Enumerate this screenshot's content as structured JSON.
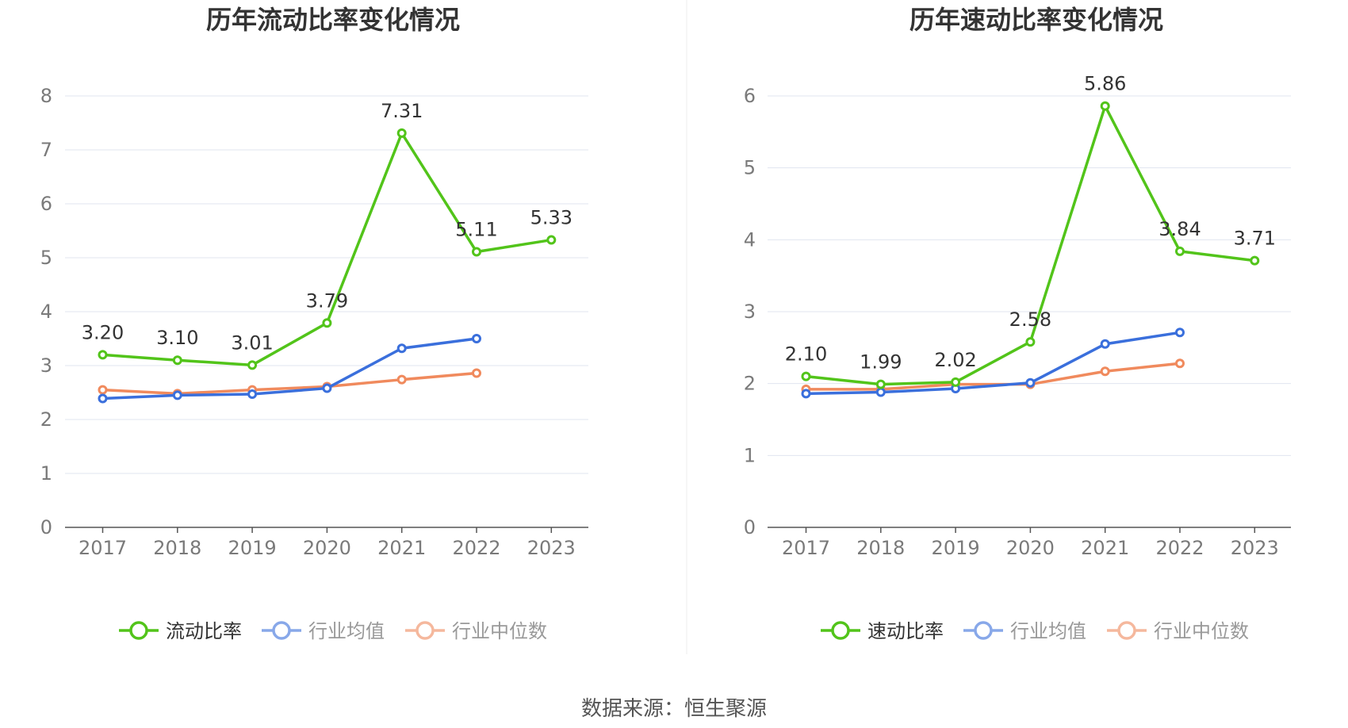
{
  "source_label": "数据来源：恒生聚源",
  "chart_data": [
    {
      "type": "line",
      "title": "历年流动比率变化情况",
      "categories": [
        "2017",
        "2018",
        "2019",
        "2020",
        "2021",
        "2022",
        "2023"
      ],
      "ylim": [
        0,
        8
      ],
      "yticks": [
        "0",
        "1",
        "2",
        "3",
        "4",
        "5",
        "6",
        "7",
        "8"
      ],
      "grid": true,
      "legend_position": "bottom-center",
      "series": [
        {
          "name": "流动比率",
          "color": "#52c41a",
          "values": [
            3.2,
            3.1,
            3.01,
            3.79,
            7.31,
            5.11,
            5.33
          ],
          "labels": [
            "3.20",
            "3.10",
            "3.01",
            "3.79",
            "7.31",
            "5.11",
            "5.33"
          ]
        },
        {
          "name": "行业均值",
          "color": "#3a6fdc",
          "values": [
            2.39,
            2.45,
            2.47,
            2.58,
            3.32,
            3.5,
            null
          ]
        },
        {
          "name": "行业中位数",
          "color": "#f08a5d",
          "values": [
            2.55,
            2.48,
            2.55,
            2.61,
            2.74,
            2.86,
            null
          ]
        }
      ]
    },
    {
      "type": "line",
      "title": "历年速动比率变化情况",
      "categories": [
        "2017",
        "2018",
        "2019",
        "2020",
        "2021",
        "2022",
        "2023"
      ],
      "ylim": [
        0,
        6
      ],
      "yticks": [
        "0",
        "1",
        "2",
        "3",
        "4",
        "5",
        "6"
      ],
      "grid": true,
      "legend_position": "bottom-center",
      "series": [
        {
          "name": "速动比率",
          "color": "#52c41a",
          "values": [
            2.1,
            1.99,
            2.02,
            2.58,
            5.86,
            3.84,
            3.71
          ],
          "labels": [
            "2.10",
            "1.99",
            "2.02",
            "2.58",
            "5.86",
            "3.84",
            "3.71"
          ]
        },
        {
          "name": "行业均值",
          "color": "#3a6fdc",
          "values": [
            1.86,
            1.88,
            1.93,
            2.01,
            2.55,
            2.71,
            null
          ]
        },
        {
          "name": "行业中位数",
          "color": "#f08a5d",
          "values": [
            1.92,
            1.92,
            1.99,
            1.99,
            2.17,
            2.28,
            null
          ]
        }
      ]
    }
  ]
}
